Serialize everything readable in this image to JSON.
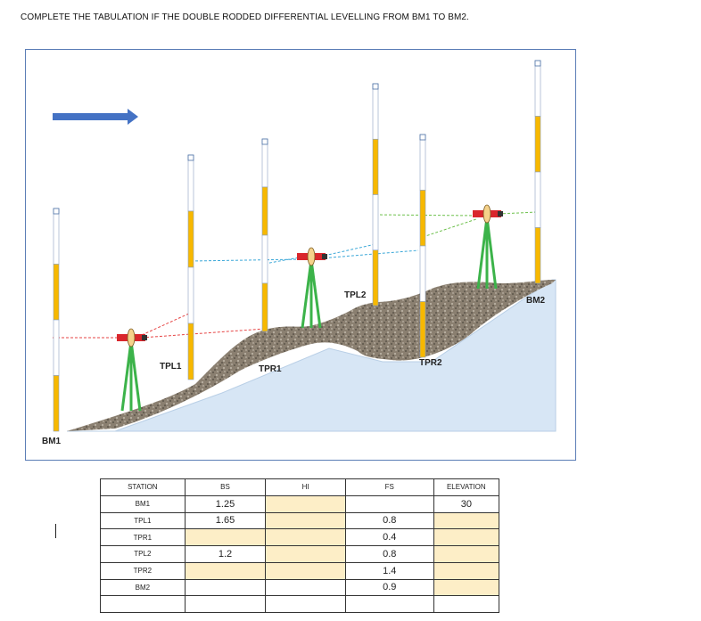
{
  "title": "COMPLETE THE TABULATION IF THE DOUBLE RODDED DIFFERENTIAL LEVELLING FROM BM1 TO BM2.",
  "figure": {
    "labels": {
      "bm1": "BM1",
      "tpl1": "TPL1",
      "tpr1": "TPR1",
      "tpl2": "TPL2",
      "tpr2": "TPR2",
      "bm2": "BM2"
    },
    "colors": {
      "rod": "#f7b800",
      "tripod": "#3cb34a",
      "level": "#d9262c",
      "ground": "#8a7f70",
      "water": "#d7e6f5",
      "arrow": "#4472c4"
    }
  },
  "table": {
    "headers": [
      "STATION",
      "BS",
      "HI",
      "FS",
      "ELEVATION"
    ],
    "rows": [
      {
        "station": "BM1",
        "bs": "1.25",
        "hi": "",
        "fs": "",
        "elev": "30"
      },
      {
        "station": "TPL1",
        "bs": "1.65",
        "hi": "",
        "fs": "0.8",
        "elev": ""
      },
      {
        "station": "TPR1",
        "bs": "",
        "hi": "",
        "fs": "0.4",
        "elev": ""
      },
      {
        "station": "TPL2",
        "bs": "1.2",
        "hi": "",
        "fs": "0.8",
        "elev": ""
      },
      {
        "station": "TPR2",
        "bs": "",
        "hi": "",
        "fs": "1.4",
        "elev": ""
      },
      {
        "station": "BM2",
        "bs": "",
        "hi": "",
        "fs": "0.9",
        "elev": ""
      },
      {
        "station": "",
        "bs": "",
        "hi": "",
        "fs": "",
        "elev": ""
      }
    ]
  }
}
